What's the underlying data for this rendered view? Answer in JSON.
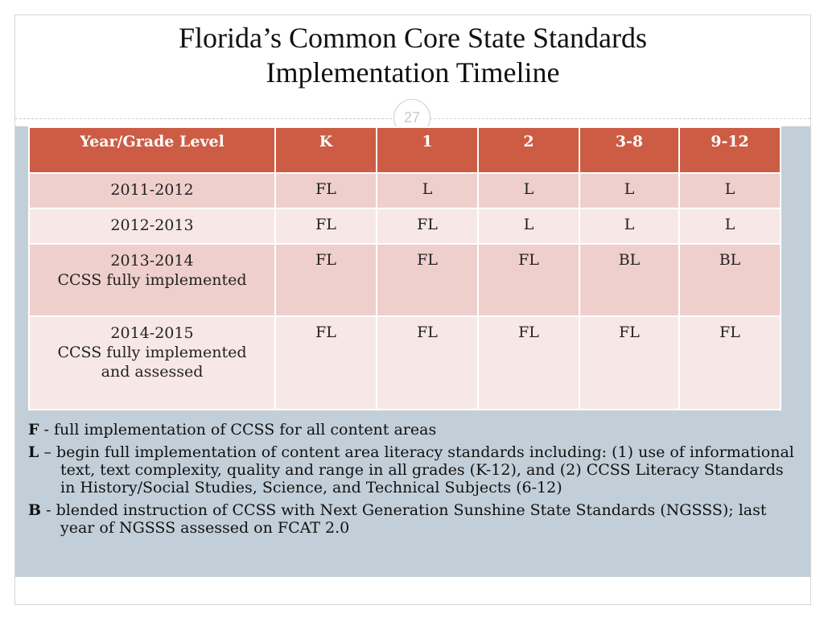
{
  "slide": {
    "title_line1": "Florida’s Common Core State Standards",
    "title_line2": "Implementation Timeline",
    "page_number": "27"
  },
  "table": {
    "headers": [
      "Year/Grade Level",
      "K",
      "1",
      "2",
      "3-8",
      "9-12"
    ],
    "rows": [
      {
        "year": [
          "2011-2012"
        ],
        "cells": [
          "FL",
          "L",
          "L",
          "L",
          "L"
        ]
      },
      {
        "year": [
          "2012-2013"
        ],
        "cells": [
          "FL",
          "FL",
          "L",
          "L",
          "L"
        ]
      },
      {
        "year": [
          "2013-2014",
          "CCSS fully implemented"
        ],
        "cells": [
          "FL",
          "FL",
          "FL",
          "BL",
          "BL"
        ]
      },
      {
        "year": [
          "2014-2015",
          "CCSS fully implemented",
          "and assessed"
        ],
        "cells": [
          "FL",
          "FL",
          "FL",
          "FL",
          "FL"
        ]
      }
    ]
  },
  "legend": [
    {
      "key": "F",
      "sep": " - ",
      "text": "full implementation of CCSS for all content areas"
    },
    {
      "key": "L",
      "sep": " – ",
      "text": "begin full implementation of content area literacy standards including: (1) use of informational text, text complexity, quality and range in all grades (K-12), and (2) CCSS Literacy Standards in History/Social Studies, Science, and Technical Subjects (6-12)"
    },
    {
      "key": "B",
      "sep": " - ",
      "text": "blended instruction of CCSS with Next Generation Sunshine State Standards (NGSSS); last year of NGSSS assessed on FCAT 2.0"
    }
  ]
}
